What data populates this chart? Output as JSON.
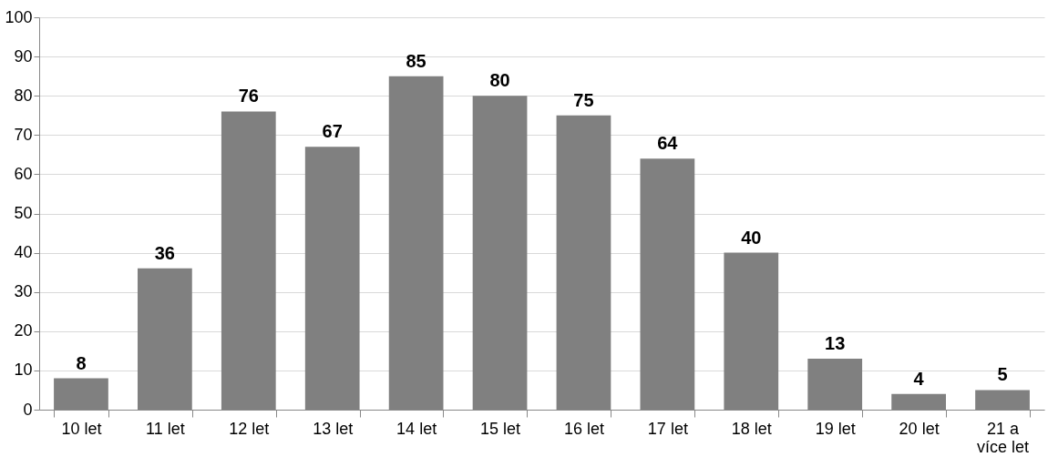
{
  "chart_data": {
    "type": "bar",
    "categories": [
      "10 let",
      "11 let",
      "12 let",
      "13 let",
      "14 let",
      "15 let",
      "16 let",
      "17 let",
      "18 let",
      "19 let",
      "20 let",
      "21 a více let"
    ],
    "values": [
      8,
      36,
      76,
      67,
      85,
      80,
      75,
      64,
      40,
      13,
      4,
      5
    ],
    "color": "#808080",
    "ylim": [
      0,
      100
    ],
    "yticks": [
      0,
      10,
      20,
      30,
      40,
      50,
      60,
      70,
      80,
      90,
      100
    ],
    "grid": "y",
    "data_labels": true
  }
}
